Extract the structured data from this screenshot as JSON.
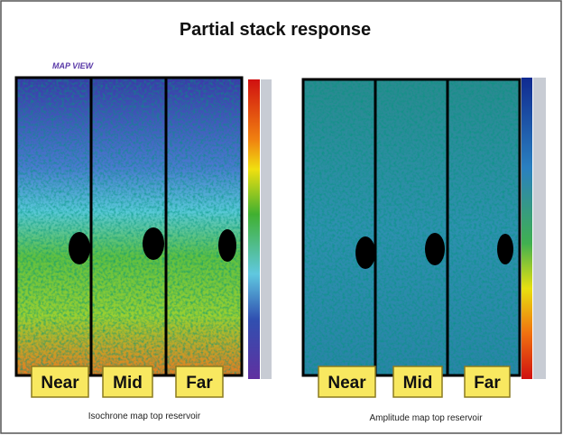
{
  "header": {
    "title": "Partial stack response",
    "subtitle": "MAP VIEW"
  },
  "panels": [
    {
      "labels": [
        "Near",
        "Mid",
        "Far"
      ],
      "caption": "Isochrone map top reservoir"
    },
    {
      "labels": [
        "Near",
        "Mid",
        "Far"
      ],
      "caption": "Amplitude map top reservoir"
    }
  ]
}
